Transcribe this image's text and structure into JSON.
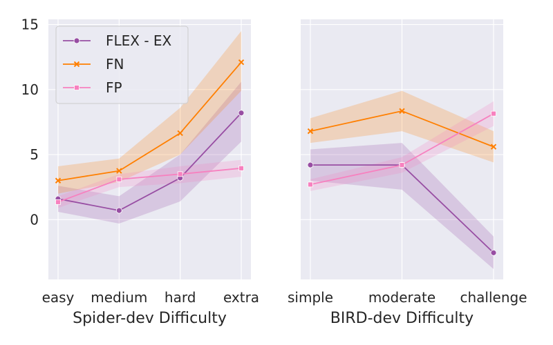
{
  "chart_data": [
    {
      "type": "line",
      "xlabel": "Spider-dev Difficulty",
      "ylabel": "",
      "ylim": [
        -4.6,
        15.4
      ],
      "yticks": [
        0,
        5,
        10,
        15
      ],
      "categories": [
        "easy",
        "medium",
        "hard",
        "extra"
      ],
      "legend_position": "top-left",
      "series": [
        {
          "name": "FLEX - EX",
          "color": "#984ea3",
          "marker": "circle",
          "values": [
            1.6,
            0.7,
            3.2,
            8.2
          ],
          "lower": [
            0.6,
            -0.3,
            1.4,
            6.0
          ],
          "upper": [
            2.6,
            1.8,
            5.0,
            10.6
          ]
        },
        {
          "name": "FN",
          "color": "#ff7f00",
          "marker": "x",
          "values": [
            3.0,
            3.75,
            6.65,
            12.1
          ],
          "lower": [
            2.0,
            2.9,
            5.0,
            9.9
          ],
          "upper": [
            4.1,
            4.7,
            8.6,
            14.5
          ]
        },
        {
          "name": "FP",
          "color": "#f781bf",
          "marker": "square",
          "values": [
            1.35,
            3.1,
            3.5,
            3.95
          ],
          "lower": [
            0.9,
            2.5,
            2.8,
            3.3
          ],
          "upper": [
            1.8,
            3.5,
            4.1,
            4.6
          ]
        }
      ]
    },
    {
      "type": "line",
      "xlabel": "BIRD-dev Difficulty",
      "ylabel": "",
      "ylim": [
        -4.6,
        15.4
      ],
      "yticks": [
        0,
        5,
        10,
        15
      ],
      "categories": [
        "simple",
        "moderate",
        "challenge"
      ],
      "series": [
        {
          "name": "FLEX - EX",
          "color": "#984ea3",
          "marker": "circle",
          "values": [
            4.2,
            4.2,
            -2.55
          ],
          "lower": [
            3.0,
            2.3,
            -3.8
          ],
          "upper": [
            5.4,
            5.9,
            -1.3
          ]
        },
        {
          "name": "FN",
          "color": "#ff7f00",
          "marker": "x",
          "values": [
            6.8,
            8.35,
            5.6
          ],
          "lower": [
            5.9,
            6.8,
            4.4
          ],
          "upper": [
            7.8,
            9.9,
            6.8
          ]
        },
        {
          "name": "FP",
          "color": "#f781bf",
          "marker": "square",
          "values": [
            2.7,
            4.2,
            8.15
          ],
          "lower": [
            2.2,
            3.6,
            7.2
          ],
          "upper": [
            3.1,
            4.8,
            9.1
          ]
        }
      ]
    }
  ]
}
